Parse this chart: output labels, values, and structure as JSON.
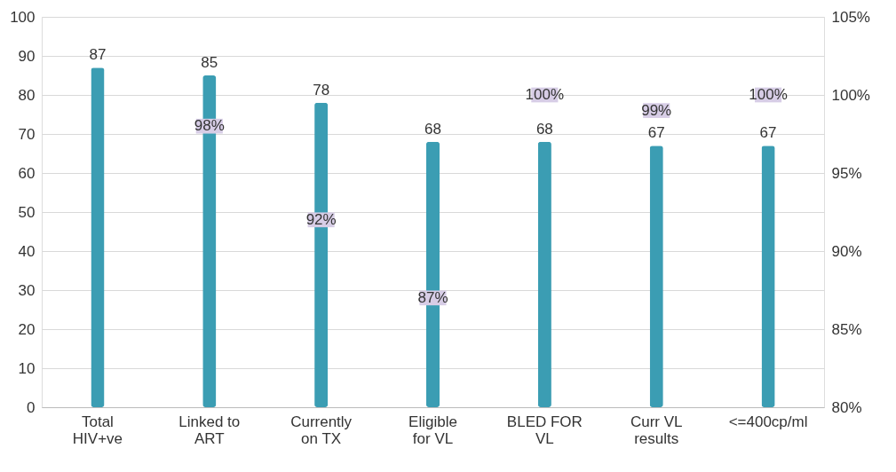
{
  "chart_data": {
    "type": "bar",
    "categories": [
      "Total HIV+ve",
      "Linked to ART",
      "Currently on TX",
      "Eligible for VL",
      "BLED FOR VL",
      "Curr VL results",
      "<=400cp/ml"
    ],
    "series": [
      {
        "color": "#3b9db3",
        "values": [
          87,
          85,
          78,
          68,
          68,
          67,
          67
        ]
      },
      {
        "type": "scatter",
        "axis": "y2",
        "marker": "square",
        "color": "#d7cde6",
        "values": [
          null,
          98,
          92,
          87,
          100,
          99,
          100
        ],
        "value_labels": [
          null,
          "98%",
          "92%",
          "87%",
          "100%",
          "99%",
          "100%"
        ]
      }
    ],
    "data_labels": true,
    "ylim": [
      0,
      100
    ],
    "yticks": [
      0,
      10,
      20,
      30,
      40,
      50,
      60,
      70,
      80,
      90,
      100
    ],
    "y2lim": [
      80,
      105
    ],
    "y2ticks": [
      {
        "value": 80,
        "label": "80%"
      },
      {
        "value": 85,
        "label": "85%"
      },
      {
        "value": 90,
        "label": "90%"
      },
      {
        "value": 95,
        "label": "95%"
      },
      {
        "value": 100,
        "label": "100%"
      },
      {
        "value": 105,
        "label": "105%"
      }
    ],
    "grid": "y"
  }
}
